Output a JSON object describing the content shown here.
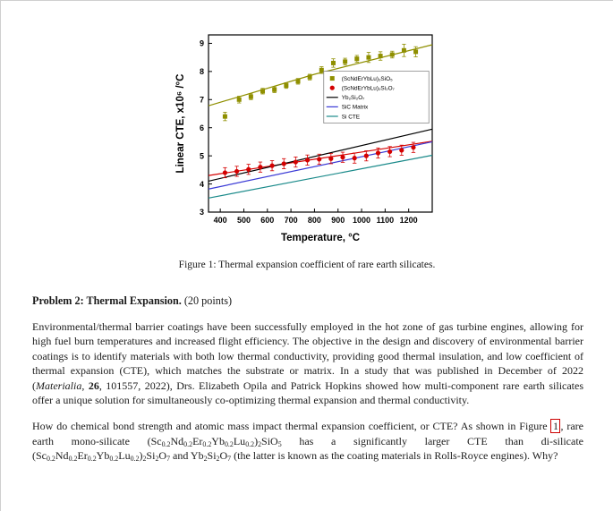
{
  "figure": {
    "caption": "Figure 1: Thermal expansion coefficient of rare earth silicates."
  },
  "problem": {
    "title": "Problem 2: Thermal Expansion.",
    "points": " (20 points)",
    "para1_html": "Environmental/thermal barrier coatings have been successfully employed in the hot zone of gas turbine engines, allowing for high fuel burn temperatures and increased flight efficiency. The objective in the design and discovery of environmental barrier coatings is to identify materials with both low thermal conductivity, providing good thermal insulation, and low coefficient of thermal expansion (CTE), which matches the substrate or matrix. In a study that was published in December of 2022 (<em>Materialia</em>, <strong>26</strong>, 101557, 2022), Drs. Elizabeth Opila and Patrick Hopkins showed how multi-component rare earth silicates offer a unique solution for simultaneously co-optimizing thermal expansion and thermal conductivity.",
    "para2_html": "How do chemical bond strength and atomic mass impact thermal expansion coefficient, or CTE? As shown in Figure <span class=\"refbox\" data-name=\"figure-ref-link\" data-interactable=\"true\">1</span>, rare earth mono-silicate (Sc<sub>0.2</sub>Nd<sub>0.2</sub>Er<sub>0.2</sub>Yb<sub>0.2</sub>Lu<sub>0.2</sub>)<sub>2</sub>SiO<sub>5</sub> has a significantly larger CTE than di-silicate (Sc<sub>0.2</sub>Nd<sub>0.2</sub>Er<sub>0.2</sub>Yb<sub>0.2</sub>Lu<sub>0.2</sub>)<sub>2</sub>Si<sub>2</sub>O<sub>7</sub> and Yb<sub>2</sub>Si<sub>2</sub>O<sub>7</sub> (the latter is known as the coating materials in Rolls-Royce engines). Why?"
  },
  "chart_data": {
    "type": "scatter",
    "title": "",
    "xlabel": "Temperature, °C",
    "ylabel": "Linear CTE, x10⁶ /°C",
    "xlim": [
      350,
      1300
    ],
    "ylim": [
      3,
      9.3
    ],
    "xticks": [
      400,
      500,
      600,
      700,
      800,
      900,
      1000,
      1100,
      1200
    ],
    "yticks": [
      3,
      4,
      5,
      6,
      7,
      8,
      9
    ],
    "grid": false,
    "legend_position": "inside-right",
    "series": [
      {
        "name": "mono-silicate",
        "label": "(ScNdErYbLu)₂SiO₅",
        "type": "scatter",
        "marker": "square",
        "color": "#8f8f00",
        "x": [
          420,
          480,
          530,
          580,
          630,
          680,
          730,
          780,
          830,
          880,
          930,
          980,
          1030,
          1080,
          1130,
          1180,
          1230
        ],
        "y": [
          6.4,
          7.0,
          7.1,
          7.3,
          7.35,
          7.5,
          7.65,
          7.8,
          8.05,
          8.3,
          8.35,
          8.45,
          8.5,
          8.55,
          8.6,
          8.75,
          8.7
        ],
        "yerr": [
          0.15,
          0.12,
          0.1,
          0.1,
          0.1,
          0.1,
          0.1,
          0.1,
          0.12,
          0.15,
          0.12,
          0.12,
          0.18,
          0.15,
          0.12,
          0.22,
          0.18
        ]
      },
      {
        "name": "mono-silicate-fit",
        "label": null,
        "type": "fit",
        "color": "#8f8f00",
        "x": [
          350,
          800,
          1300
        ],
        "y": [
          6.78,
          7.9,
          8.95
        ]
      },
      {
        "name": "di-silicate",
        "label": "(ScNdErYbLu)₂Si₂O₇",
        "type": "scatter",
        "marker": "circle",
        "color": "#d40000",
        "x": [
          420,
          470,
          520,
          570,
          620,
          670,
          720,
          770,
          820,
          870,
          920,
          970,
          1020,
          1070,
          1120,
          1170,
          1220
        ],
        "y": [
          4.4,
          4.45,
          4.52,
          4.6,
          4.65,
          4.72,
          4.78,
          4.85,
          4.88,
          4.9,
          4.95,
          4.92,
          5.0,
          5.1,
          5.15,
          5.2,
          5.3
        ],
        "yerr": [
          0.18,
          0.18,
          0.18,
          0.18,
          0.18,
          0.18,
          0.18,
          0.18,
          0.18,
          0.18,
          0.18,
          0.18,
          0.18,
          0.18,
          0.18,
          0.18,
          0.18
        ]
      },
      {
        "name": "di-silicate-fit",
        "label": null,
        "type": "fit",
        "color": "#d40000",
        "x": [
          350,
          1300
        ],
        "y": [
          4.3,
          5.52
        ]
      },
      {
        "name": "Yb2Si2O7",
        "label": "Yb₂Si₂O₇",
        "type": "line",
        "color": "#000000",
        "x": [
          350,
          1300
        ],
        "y": [
          4.1,
          5.95
        ]
      },
      {
        "name": "SiC-matrix",
        "label": "SiC Matrix",
        "type": "line",
        "color": "#3a3ad6",
        "x": [
          350,
          1300
        ],
        "y": [
          3.82,
          5.5
        ]
      },
      {
        "name": "Si-CTE",
        "label": "Si CTE",
        "type": "line",
        "color": "#1a8a8a",
        "x": [
          350,
          1300
        ],
        "y": [
          3.5,
          5.02
        ]
      }
    ]
  }
}
